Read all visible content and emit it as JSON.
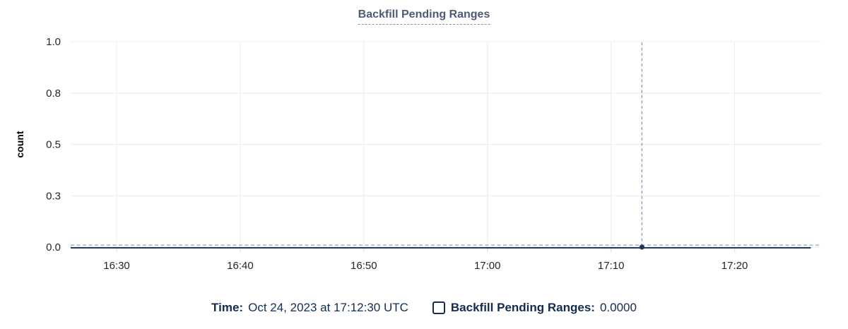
{
  "header": {
    "title": "Backfill Pending Ranges"
  },
  "chart_data": {
    "type": "line",
    "title": "Backfill Pending Ranges",
    "xlabel": "",
    "ylabel": "count",
    "ylim": [
      0,
      1
    ],
    "y_ticks": [
      {
        "value": 0.0,
        "label": "0.0"
      },
      {
        "value": 0.25,
        "label": "0.3"
      },
      {
        "value": 0.5,
        "label": "0.5"
      },
      {
        "value": 0.75,
        "label": "0.8"
      },
      {
        "value": 1.0,
        "label": "1.0"
      }
    ],
    "x_ticks": [
      "16:30",
      "16:40",
      "16:50",
      "17:00",
      "17:10",
      "17:20"
    ],
    "x_domain": [
      "16:26:17",
      "17:27:00"
    ],
    "grid": true,
    "legend_position": "bottom",
    "series": [
      {
        "name": "Backfill Pending Ranges",
        "x": [
          "16:26:17",
          "17:26:10"
        ],
        "values": [
          0,
          0
        ]
      }
    ],
    "hover": {
      "x": "17:12:30",
      "value": 0
    },
    "colors": {
      "series": "#22375a",
      "point": "#22375a",
      "crosshair_v": "#8a9eb3",
      "crosshair_h": "#b3c2d0",
      "grid": "#ececec",
      "tick_mark": "#e2e2e2",
      "tick_text": "#262626",
      "axis_title": "#000000"
    }
  },
  "legend": {
    "time_label": "Time:",
    "time_value": "Oct 24, 2023 at 17:12:30 UTC",
    "checkbox_checked": false,
    "series_label": "Backfill Pending Ranges:",
    "series_value": "0.0000"
  }
}
